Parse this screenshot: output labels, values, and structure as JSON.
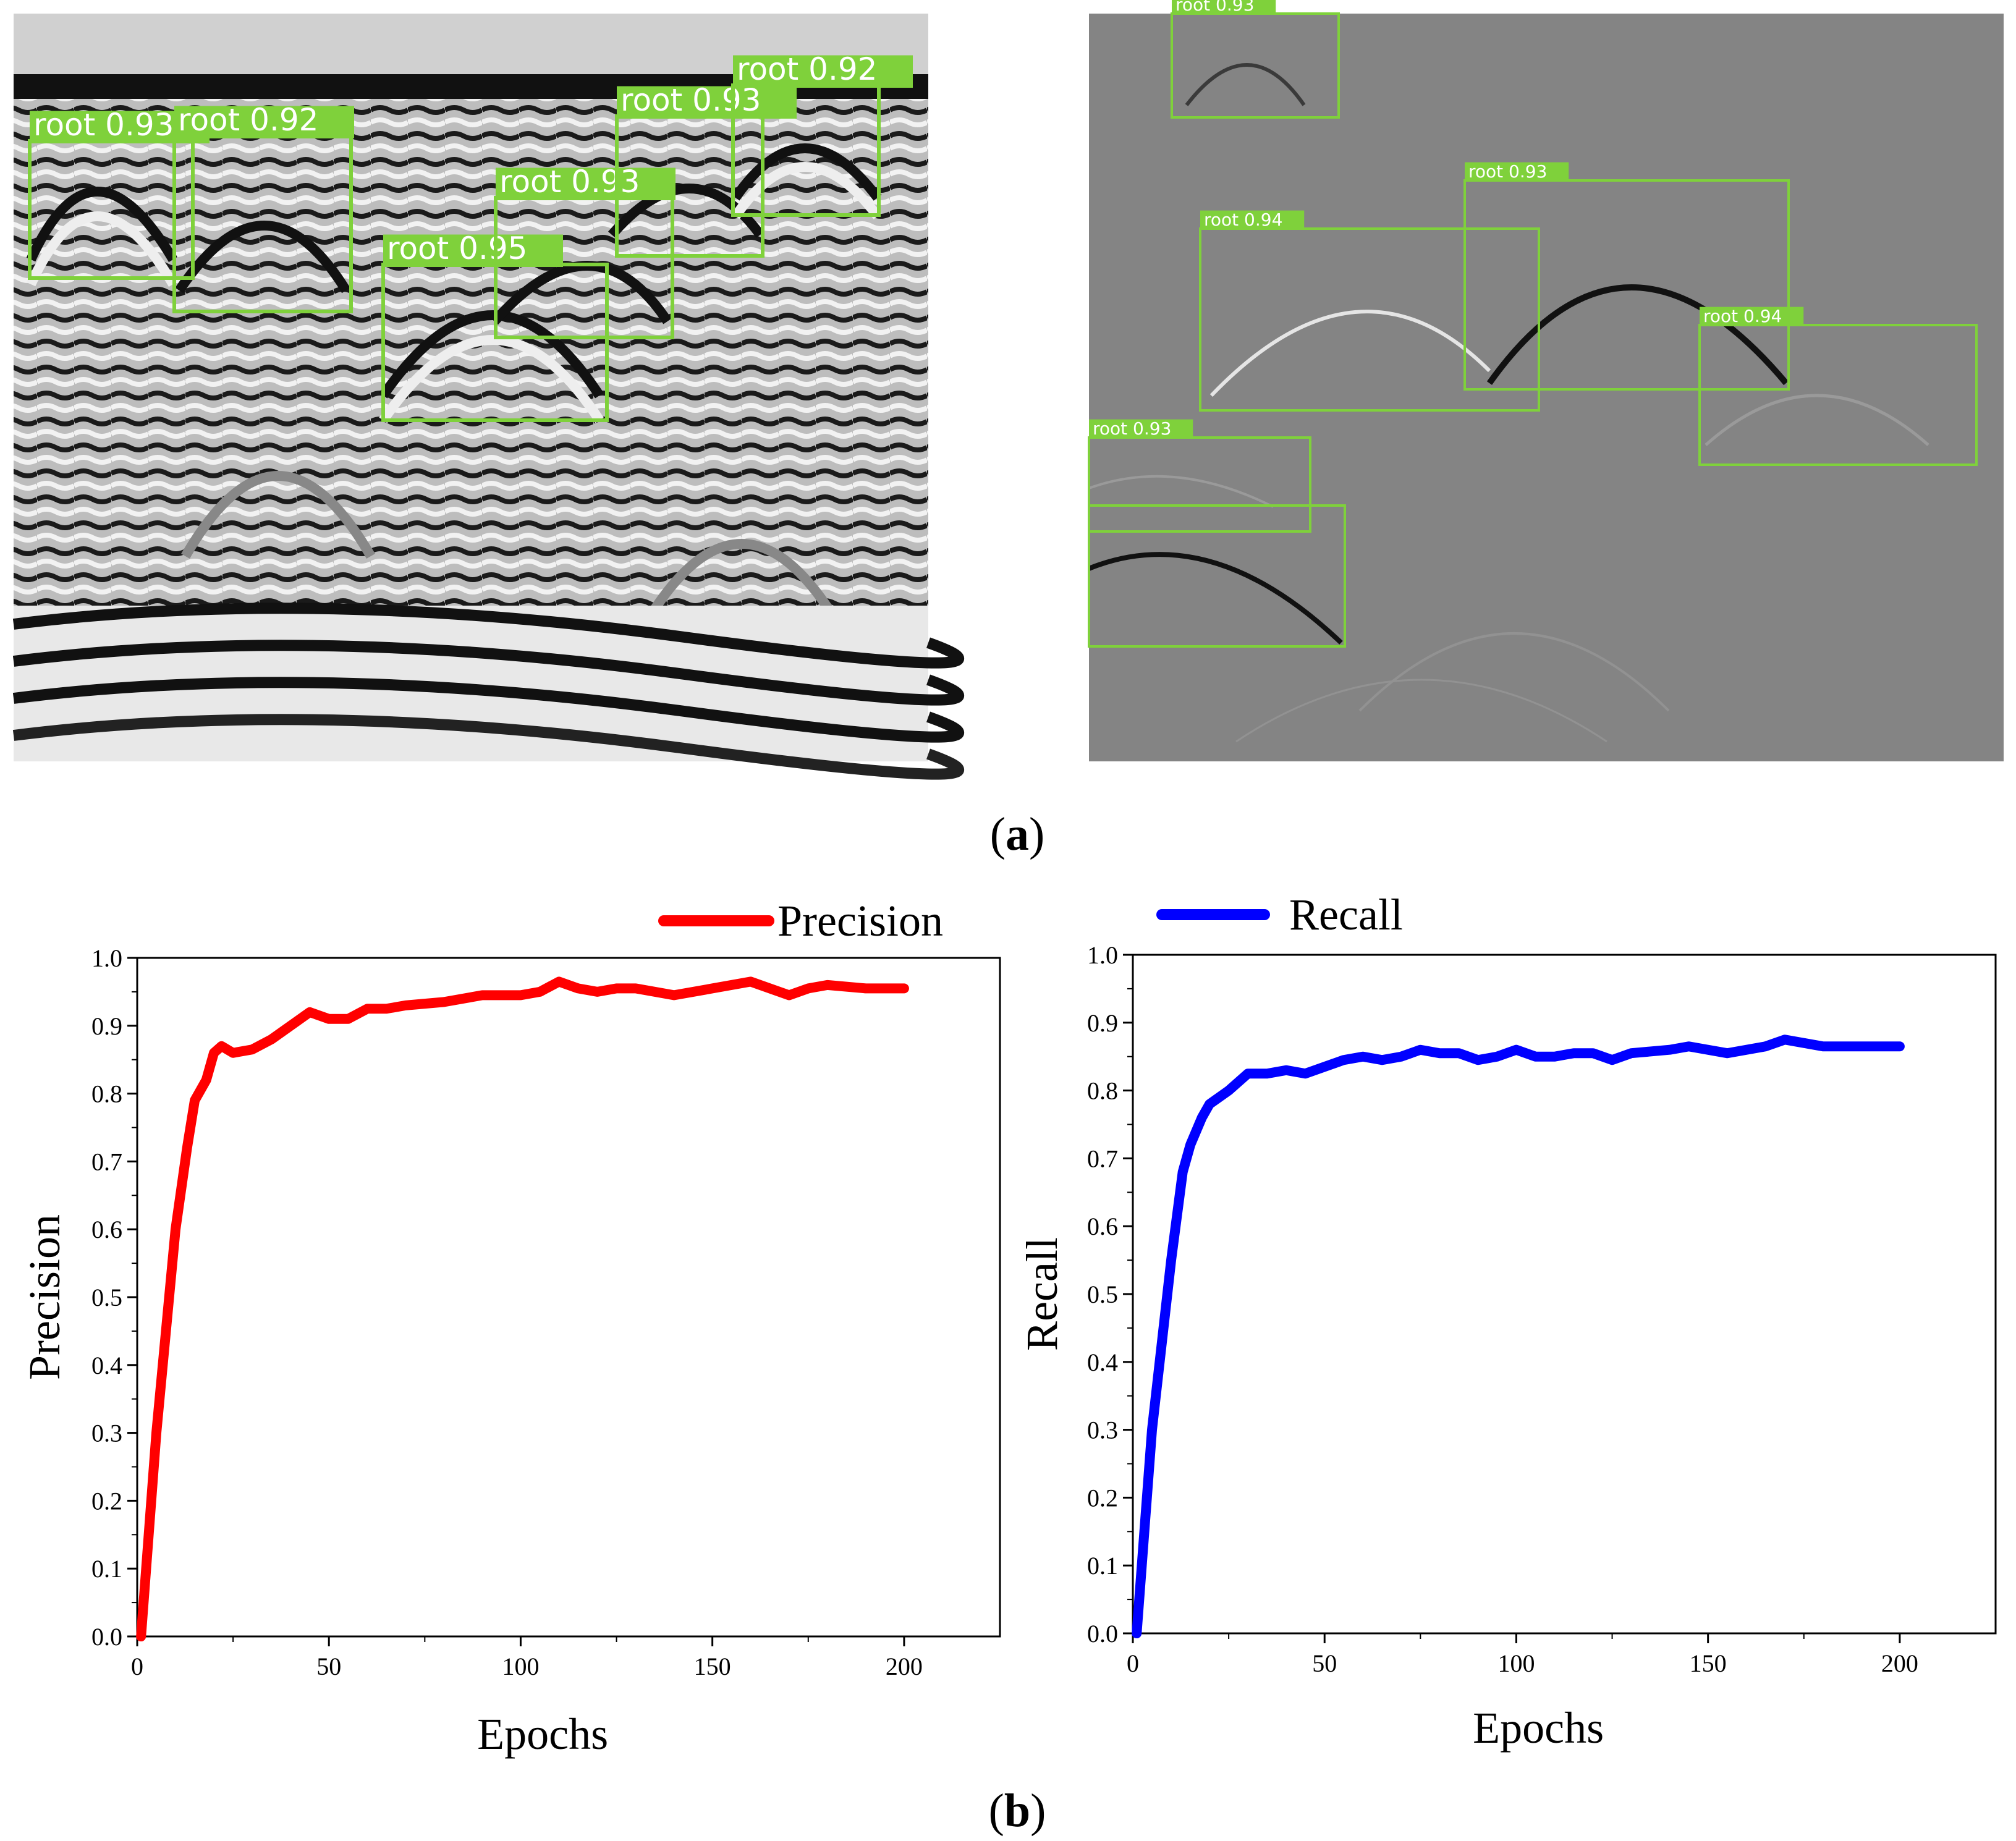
{
  "panels": {
    "a": {
      "label": "a"
    },
    "b": {
      "label": "b"
    }
  },
  "detections": {
    "left": [
      "root 0.93",
      "root 0.92",
      "root 0.95",
      "root 0.93",
      "root 0.93",
      "root 0.92"
    ],
    "right": [
      "root 0.93",
      "root 0.94",
      "root 0.93",
      "root 0.94",
      "root 0.93"
    ]
  },
  "colors": {
    "box": "#7fd13b",
    "precision": "#ff0000",
    "recall": "#0000ff"
  },
  "chart_data": [
    {
      "type": "line",
      "title": "",
      "legend": "Precision",
      "legend_position": "top-right",
      "xlabel": "Epochs",
      "ylabel": "Precision",
      "xlim": [
        0,
        225
      ],
      "ylim": [
        0,
        1.0
      ],
      "xticks": [
        0,
        50,
        100,
        150,
        200
      ],
      "yticks": [
        0.0,
        0.1,
        0.2,
        0.3,
        0.4,
        0.5,
        0.6,
        0.7,
        0.8,
        0.9,
        1.0
      ],
      "series": [
        {
          "name": "Precision",
          "x": [
            1,
            5,
            10,
            13,
            15,
            18,
            20,
            22,
            25,
            30,
            35,
            40,
            45,
            50,
            55,
            60,
            65,
            70,
            80,
            90,
            100,
            105,
            110,
            115,
            120,
            125,
            130,
            140,
            150,
            155,
            160,
            165,
            170,
            175,
            180,
            190,
            200
          ],
          "y": [
            0.0,
            0.3,
            0.6,
            0.72,
            0.79,
            0.82,
            0.86,
            0.87,
            0.86,
            0.865,
            0.88,
            0.9,
            0.92,
            0.91,
            0.91,
            0.925,
            0.925,
            0.93,
            0.935,
            0.945,
            0.945,
            0.95,
            0.965,
            0.955,
            0.95,
            0.955,
            0.955,
            0.945,
            0.955,
            0.96,
            0.965,
            0.955,
            0.945,
            0.955,
            0.96,
            0.955,
            0.955
          ]
        }
      ]
    },
    {
      "type": "line",
      "title": "",
      "legend": "Recall",
      "legend_position": "top-left",
      "xlabel": "Epochs",
      "ylabel": "Recall",
      "xlim": [
        0,
        225
      ],
      "ylim": [
        0,
        1.0
      ],
      "xticks": [
        0,
        50,
        100,
        150,
        200
      ],
      "yticks": [
        0.0,
        0.1,
        0.2,
        0.3,
        0.4,
        0.5,
        0.6,
        0.7,
        0.8,
        0.9,
        1.0
      ],
      "series": [
        {
          "name": "Recall",
          "x": [
            1,
            5,
            10,
            13,
            15,
            18,
            20,
            25,
            30,
            35,
            40,
            45,
            50,
            55,
            60,
            65,
            70,
            75,
            80,
            85,
            90,
            95,
            100,
            105,
            110,
            115,
            120,
            125,
            130,
            140,
            145,
            150,
            155,
            160,
            165,
            170,
            175,
            180,
            190,
            200
          ],
          "y": [
            0.0,
            0.3,
            0.55,
            0.68,
            0.72,
            0.76,
            0.78,
            0.8,
            0.825,
            0.825,
            0.83,
            0.825,
            0.835,
            0.845,
            0.85,
            0.845,
            0.85,
            0.86,
            0.855,
            0.855,
            0.845,
            0.85,
            0.86,
            0.85,
            0.85,
            0.855,
            0.855,
            0.845,
            0.855,
            0.86,
            0.865,
            0.86,
            0.855,
            0.86,
            0.865,
            0.875,
            0.87,
            0.865,
            0.865,
            0.865
          ]
        }
      ]
    }
  ]
}
